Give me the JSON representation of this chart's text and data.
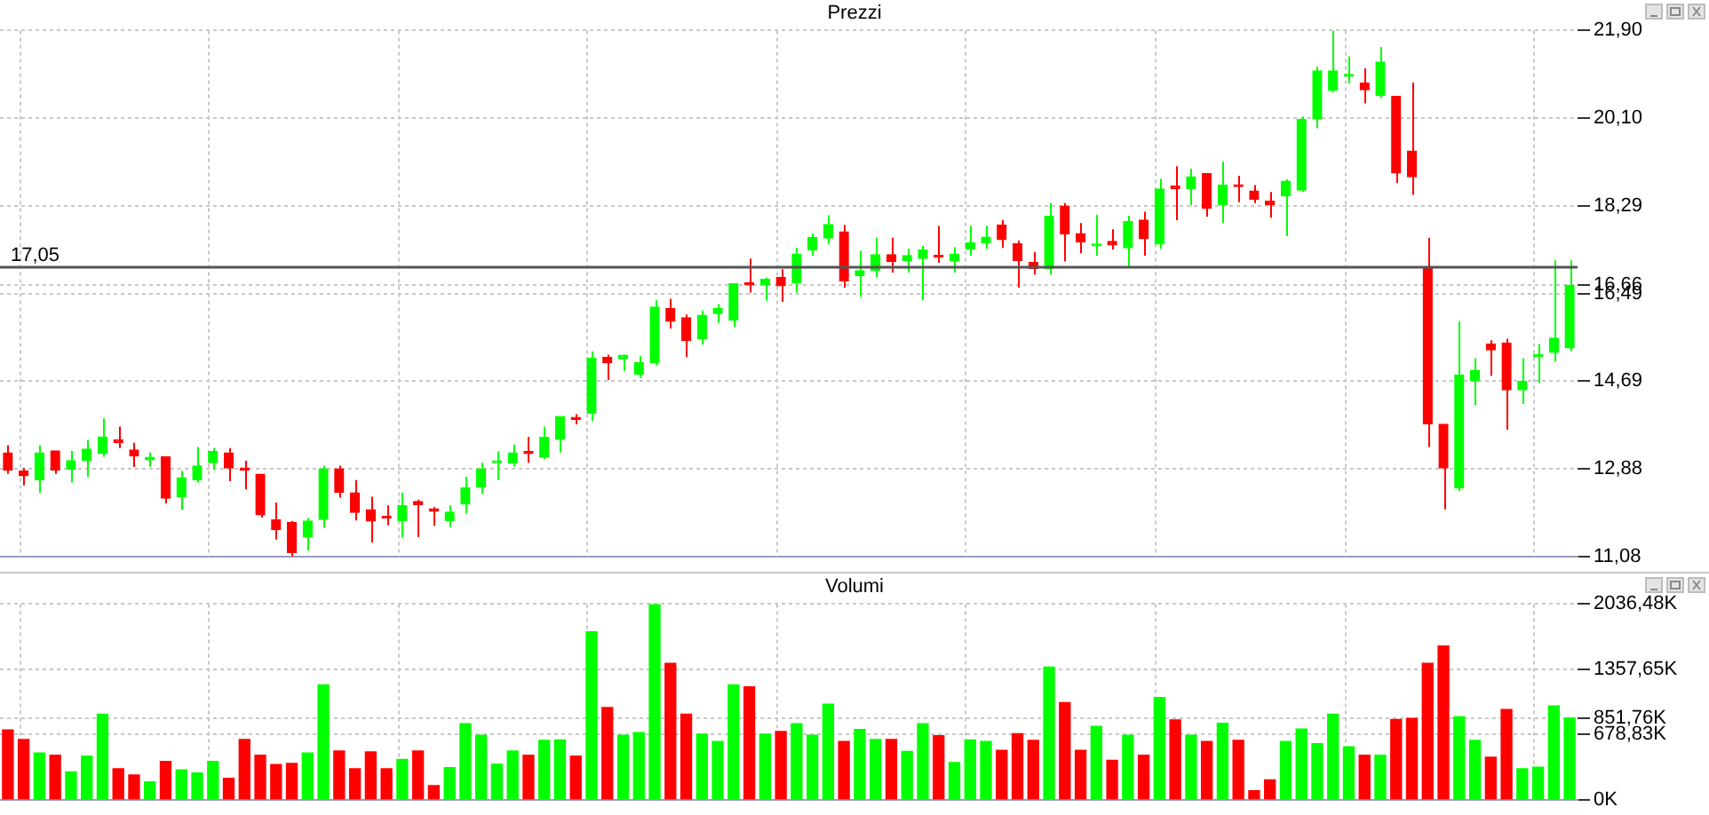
{
  "chart_data": [
    {
      "type": "candlestick",
      "title": "Prezzi",
      "tick_labels": "y",
      "grid": true,
      "categories": [
        null,
        null,
        null,
        null,
        null,
        null,
        null,
        null,
        null,
        null,
        null,
        null,
        null,
        null,
        null,
        null,
        null,
        null,
        null,
        null,
        null,
        null,
        null,
        null,
        null,
        null,
        null,
        null,
        null,
        null,
        null,
        null,
        null,
        null,
        null,
        null,
        null,
        null,
        null,
        null,
        null,
        null,
        null,
        null,
        null,
        null,
        null,
        null,
        null,
        null,
        null,
        null,
        null,
        null,
        null,
        null,
        null,
        null,
        null,
        null,
        null,
        null,
        null,
        null,
        null,
        null,
        null,
        null,
        null,
        null,
        null,
        null,
        null,
        null,
        null,
        null,
        null,
        null,
        null,
        null,
        null,
        null,
        null,
        null,
        null,
        null,
        null,
        null,
        null,
        null,
        null,
        null,
        null,
        null,
        null,
        null,
        null,
        null,
        null,
        null
      ],
      "ohlc": [
        [
          13.21,
          13.37,
          12.78,
          12.86
        ],
        [
          12.84,
          12.9,
          12.54,
          12.74
        ],
        [
          12.66,
          13.37,
          12.39,
          13.21
        ],
        [
          13.25,
          13.25,
          12.78,
          12.86
        ],
        [
          12.88,
          13.25,
          12.6,
          13.05
        ],
        [
          13.06,
          13.48,
          12.72,
          13.29
        ],
        [
          13.2,
          13.92,
          13.13,
          13.54
        ],
        [
          13.48,
          13.75,
          13.31,
          13.42
        ],
        [
          13.27,
          13.42,
          12.92,
          13.15
        ],
        [
          13.07,
          13.22,
          12.93,
          13.12
        ],
        [
          13.13,
          13.13,
          12.17,
          12.28
        ],
        [
          12.31,
          12.84,
          12.04,
          12.7
        ],
        [
          12.66,
          13.33,
          12.6,
          12.94
        ],
        [
          13.01,
          13.31,
          12.86,
          13.24
        ],
        [
          13.21,
          13.31,
          12.63,
          12.9
        ],
        [
          12.9,
          13.05,
          12.46,
          12.86
        ],
        [
          12.77,
          12.77,
          11.88,
          11.94
        ],
        [
          11.83,
          12.19,
          11.43,
          11.63
        ],
        [
          11.78,
          11.81,
          11.08,
          11.16
        ],
        [
          11.48,
          11.87,
          11.2,
          11.81
        ],
        [
          11.84,
          12.95,
          11.67,
          12.88
        ],
        [
          12.88,
          12.95,
          12.29,
          12.4
        ],
        [
          12.39,
          12.65,
          11.82,
          11.99
        ],
        [
          12.04,
          12.31,
          11.37,
          11.81
        ],
        [
          11.9,
          12.13,
          11.72,
          11.87
        ],
        [
          11.82,
          12.39,
          11.47,
          12.13
        ],
        [
          12.21,
          12.25,
          11.48,
          12.15
        ],
        [
          12.06,
          12.1,
          11.71,
          12.01
        ],
        [
          11.82,
          12.13,
          11.69,
          11.99
        ],
        [
          12.16,
          12.72,
          11.96,
          12.49
        ],
        [
          12.51,
          13.01,
          12.37,
          12.88
        ],
        [
          13.01,
          13.24,
          12.65,
          13.03
        ],
        [
          13.0,
          13.38,
          12.93,
          13.21
        ],
        [
          13.24,
          13.54,
          13.01,
          13.2
        ],
        [
          13.12,
          13.75,
          13.08,
          13.53
        ],
        [
          13.49,
          13.96,
          13.22,
          13.96
        ],
        [
          13.94,
          14.01,
          13.8,
          13.9
        ],
        [
          14.03,
          15.3,
          13.87,
          15.16
        ],
        [
          15.18,
          15.23,
          14.71,
          15.07
        ],
        [
          15.15,
          15.23,
          14.9,
          15.22
        ],
        [
          14.83,
          15.21,
          14.75,
          15.07
        ],
        [
          15.07,
          16.35,
          15.01,
          16.21
        ],
        [
          16.18,
          16.38,
          15.77,
          15.92
        ],
        [
          15.99,
          16.06,
          15.18,
          15.52
        ],
        [
          15.56,
          16.14,
          15.44,
          16.04
        ],
        [
          16.08,
          16.27,
          15.89,
          16.18
        ],
        [
          15.94,
          16.69,
          15.8,
          16.69
        ],
        [
          16.71,
          17.21,
          16.51,
          16.67
        ],
        [
          16.67,
          16.82,
          16.34,
          16.78
        ],
        [
          16.82,
          16.99,
          16.32,
          16.65
        ],
        [
          16.71,
          17.43,
          16.51,
          17.3
        ],
        [
          17.39,
          17.73,
          17.27,
          17.64
        ],
        [
          17.63,
          18.1,
          17.5,
          17.91
        ],
        [
          17.76,
          17.9,
          16.61,
          16.75
        ],
        [
          16.86,
          17.37,
          16.42,
          16.96
        ],
        [
          16.96,
          17.64,
          16.82,
          17.29
        ],
        [
          17.29,
          17.64,
          16.92,
          17.15
        ],
        [
          17.17,
          17.41,
          16.92,
          17.27
        ],
        [
          17.21,
          17.47,
          16.35,
          17.39
        ],
        [
          17.27,
          17.88,
          17.12,
          17.24
        ],
        [
          17.16,
          17.44,
          16.92,
          17.3
        ],
        [
          17.41,
          17.88,
          17.27,
          17.53
        ],
        [
          17.53,
          17.88,
          17.41,
          17.65
        ],
        [
          17.9,
          18.0,
          17.43,
          17.6
        ],
        [
          17.51,
          17.58,
          16.61,
          17.17
        ],
        [
          17.13,
          17.34,
          16.88,
          17.0
        ],
        [
          17.0,
          18.35,
          16.88,
          18.08
        ],
        [
          18.29,
          18.35,
          17.15,
          17.72
        ],
        [
          17.72,
          17.94,
          17.32,
          17.55
        ],
        [
          17.47,
          18.11,
          17.27,
          17.49
        ],
        [
          17.56,
          17.81,
          17.39,
          17.49
        ],
        [
          17.43,
          18.09,
          17.03,
          17.97
        ],
        [
          18.0,
          18.17,
          17.27,
          17.62
        ],
        [
          17.51,
          18.85,
          17.41,
          18.64
        ],
        [
          18.7,
          19.11,
          18.0,
          18.65
        ],
        [
          18.65,
          19.06,
          18.31,
          18.89
        ],
        [
          18.96,
          18.96,
          18.07,
          18.25
        ],
        [
          18.32,
          19.2,
          17.94,
          18.72
        ],
        [
          18.71,
          18.91,
          18.37,
          18.69
        ],
        [
          18.6,
          18.72,
          18.35,
          18.43
        ],
        [
          18.39,
          18.58,
          18.05,
          18.32
        ],
        [
          18.5,
          18.84,
          17.67,
          18.8
        ],
        [
          18.62,
          20.13,
          18.58,
          20.07
        ],
        [
          20.08,
          21.16,
          19.89,
          21.07
        ],
        [
          20.67,
          21.9,
          20.63,
          21.07
        ],
        [
          20.96,
          21.37,
          20.81,
          20.98
        ],
        [
          20.82,
          21.12,
          20.4,
          20.68
        ],
        [
          20.57,
          21.56,
          20.51,
          21.25
        ],
        [
          20.55,
          20.55,
          18.76,
          18.97
        ],
        [
          19.42,
          20.83,
          18.52,
          18.89
        ],
        [
          17.03,
          17.64,
          13.33,
          13.81
        ],
        [
          13.8,
          13.8,
          12.05,
          12.9
        ],
        [
          12.49,
          15.91,
          12.43,
          14.81
        ],
        [
          14.7,
          15.16,
          14.19,
          14.91
        ],
        [
          15.45,
          15.53,
          14.8,
          15.33
        ],
        [
          15.47,
          15.56,
          13.69,
          14.51
        ],
        [
          14.51,
          15.16,
          14.22,
          14.68
        ],
        [
          15.19,
          15.45,
          14.65,
          15.22
        ],
        [
          15.28,
          17.17,
          15.09,
          15.57
        ],
        [
          15.37,
          17.17,
          15.3,
          16.66
        ]
      ],
      "colors": [
        "#ff0000",
        "#ff0000",
        "#00ff00",
        "#ff0000",
        "#00ff00",
        "#00ff00",
        "#00ff00",
        "#ff0000",
        "#ff0000",
        "#00ff00",
        "#ff0000",
        "#00ff00",
        "#00ff00",
        "#00ff00",
        "#ff0000",
        "#ff0000",
        "#ff0000",
        "#ff0000",
        "#ff0000",
        "#00ff00",
        "#00ff00",
        "#ff0000",
        "#ff0000",
        "#ff0000",
        "#ff0000",
        "#00ff00",
        "#ff0000",
        "#ff0000",
        "#00ff00",
        "#00ff00",
        "#00ff00",
        "#00ff00",
        "#00ff00",
        "#ff0000",
        "#00ff00",
        "#00ff00",
        "#ff0000",
        "#00ff00",
        "#ff0000",
        "#00ff00",
        "#00ff00",
        "#00ff00",
        "#ff0000",
        "#ff0000",
        "#00ff00",
        "#00ff00",
        "#00ff00",
        "#ff0000",
        "#00ff00",
        "#ff0000",
        "#00ff00",
        "#00ff00",
        "#00ff00",
        "#ff0000",
        "#00ff00",
        "#00ff00",
        "#ff0000",
        "#00ff00",
        "#00ff00",
        "#ff0000",
        "#00ff00",
        "#00ff00",
        "#00ff00",
        "#ff0000",
        "#ff0000",
        "#ff0000",
        "#00ff00",
        "#ff0000",
        "#ff0000",
        "#00ff00",
        "#ff0000",
        "#00ff00",
        "#ff0000",
        "#00ff00",
        "#ff0000",
        "#00ff00",
        "#ff0000",
        "#00ff00",
        "#ff0000",
        "#ff0000",
        "#ff0000",
        "#00ff00",
        "#00ff00",
        "#00ff00",
        "#00ff00",
        "#00ff00",
        "#ff0000",
        "#00ff00",
        "#ff0000",
        "#ff0000",
        "#ff0000",
        "#ff0000",
        "#00ff00",
        "#00ff00",
        "#ff0000",
        "#ff0000",
        "#00ff00",
        "#00ff00",
        "#00ff00",
        "#00ff00"
      ],
      "ylim": [
        11.08,
        21.9
      ],
      "yticks": [
        {
          "value": 11.08,
          "label": "11,08"
        },
        {
          "value": 12.88,
          "label": "12,88"
        },
        {
          "value": 14.69,
          "label": "14,69"
        },
        {
          "value": 16.49,
          "label": "16,49"
        },
        {
          "value": 16.66,
          "label": "16,66"
        },
        {
          "value": 18.29,
          "label": "18,29"
        },
        {
          "value": 20.1,
          "label": "20,10"
        },
        {
          "value": 21.9,
          "label": "21,90"
        }
      ],
      "ref_lines": [
        {
          "axis": "y",
          "value": 17.05,
          "label": "17,05"
        }
      ]
    },
    {
      "type": "bar",
      "title": "Volumi",
      "tick_labels": "y",
      "grid": true,
      "categories": [
        null,
        null,
        null,
        null,
        null,
        null,
        null,
        null,
        null,
        null,
        null,
        null,
        null,
        null,
        null,
        null,
        null,
        null,
        null,
        null,
        null,
        null,
        null,
        null,
        null,
        null,
        null,
        null,
        null,
        null,
        null,
        null,
        null,
        null,
        null,
        null,
        null,
        null,
        null,
        null,
        null,
        null,
        null,
        null,
        null,
        null,
        null,
        null,
        null,
        null,
        null,
        null,
        null,
        null,
        null,
        null,
        null,
        null,
        null,
        null,
        null,
        null,
        null,
        null,
        null,
        null,
        null,
        null,
        null,
        null,
        null,
        null,
        null,
        null,
        null,
        null,
        null,
        null,
        null,
        null,
        null,
        null,
        null,
        null,
        null,
        null,
        null,
        null,
        null,
        null,
        null,
        null,
        null,
        null,
        null,
        null,
        null,
        null,
        null,
        null
      ],
      "values": [
        726,
        628,
        486,
        464,
        289,
        453,
        890,
        322,
        257,
        186,
        399,
        311,
        278,
        399,
        224,
        628,
        464,
        366,
        377,
        486,
        1196,
        508,
        322,
        497,
        322,
        420,
        508,
        147,
        333,
        792,
        672,
        371,
        508,
        464,
        617,
        622,
        453,
        1747,
        961,
        672,
        699,
        2036,
        1420,
        890,
        683,
        606,
        1196,
        1174,
        683,
        710,
        792,
        672,
        994,
        606,
        732,
        628,
        628,
        502,
        792,
        666,
        388,
        622,
        606,
        513,
        688,
        617,
        1381,
        1010,
        513,
        764,
        410,
        672,
        464,
        1065,
        830,
        672,
        606,
        797,
        617,
        93,
        207,
        606,
        737,
        584,
        890,
        551,
        464,
        464,
        835,
        846,
        1420,
        1600,
        863,
        617,
        442,
        939,
        322,
        339,
        977,
        851.76
      ],
      "colors": [
        "#ff0000",
        "#ff0000",
        "#00ff00",
        "#ff0000",
        "#00ff00",
        "#00ff00",
        "#00ff00",
        "#ff0000",
        "#ff0000",
        "#00ff00",
        "#ff0000",
        "#00ff00",
        "#00ff00",
        "#00ff00",
        "#ff0000",
        "#ff0000",
        "#ff0000",
        "#ff0000",
        "#ff0000",
        "#00ff00",
        "#00ff00",
        "#ff0000",
        "#ff0000",
        "#ff0000",
        "#ff0000",
        "#00ff00",
        "#ff0000",
        "#ff0000",
        "#00ff00",
        "#00ff00",
        "#00ff00",
        "#00ff00",
        "#00ff00",
        "#ff0000",
        "#00ff00",
        "#00ff00",
        "#ff0000",
        "#00ff00",
        "#ff0000",
        "#00ff00",
        "#00ff00",
        "#00ff00",
        "#ff0000",
        "#ff0000",
        "#00ff00",
        "#00ff00",
        "#00ff00",
        "#ff0000",
        "#00ff00",
        "#ff0000",
        "#00ff00",
        "#00ff00",
        "#00ff00",
        "#ff0000",
        "#00ff00",
        "#00ff00",
        "#ff0000",
        "#00ff00",
        "#00ff00",
        "#ff0000",
        "#00ff00",
        "#00ff00",
        "#00ff00",
        "#ff0000",
        "#ff0000",
        "#ff0000",
        "#00ff00",
        "#ff0000",
        "#ff0000",
        "#00ff00",
        "#ff0000",
        "#00ff00",
        "#ff0000",
        "#00ff00",
        "#ff0000",
        "#00ff00",
        "#ff0000",
        "#00ff00",
        "#ff0000",
        "#ff0000",
        "#ff0000",
        "#00ff00",
        "#00ff00",
        "#00ff00",
        "#00ff00",
        "#00ff00",
        "#ff0000",
        "#00ff00",
        "#ff0000",
        "#ff0000",
        "#ff0000",
        "#ff0000",
        "#00ff00",
        "#00ff00",
        "#ff0000",
        "#ff0000",
        "#00ff00",
        "#00ff00",
        "#00ff00",
        "#00ff00"
      ],
      "ylim": [
        0,
        2036.48
      ],
      "yticks": [
        {
          "value": 0,
          "label": "0K"
        },
        {
          "value": 678.83,
          "label": "678,83K"
        },
        {
          "value": 851.76,
          "label": "851,76K"
        },
        {
          "value": 1357.65,
          "label": "1357,65K"
        },
        {
          "value": 2036.48,
          "label": "2036,48K"
        }
      ]
    }
  ]
}
